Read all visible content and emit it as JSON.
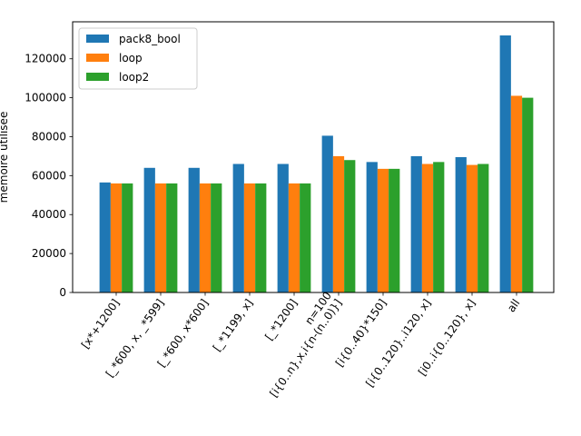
{
  "chart_data": {
    "type": "bar",
    "title": "",
    "xlabel": "",
    "ylabel": "memoire utilisee",
    "ylim": [
      0,
      139000
    ],
    "yticks": [
      0,
      20000,
      40000,
      60000,
      80000,
      100000,
      120000
    ],
    "ytick_labels": [
      "0",
      "20000",
      "40000",
      "60000",
      "80000",
      "100000",
      "120000"
    ],
    "grid": false,
    "legend_position": "top-left",
    "categories": [
      "[x*+1200]",
      "[_*600, x, _*599]",
      "[_*600, x*600]",
      "[_*1199, x]",
      "[_*1200]",
      "n=100\n[i{0..n},x,i{n-(n..0)}]",
      "[i{0..40}*150]",
      "[i{0..120}..i120, x]",
      "[i0..i{0..120}, x]",
      "all"
    ],
    "series": [
      {
        "name": "pack8_bool",
        "color": "#1f77b4",
        "values": [
          56500,
          64000,
          64000,
          66000,
          66000,
          80500,
          67000,
          70000,
          69500,
          132000
        ]
      },
      {
        "name": "loop",
        "color": "#ff7f0e",
        "values": [
          56000,
          56000,
          56000,
          56000,
          56000,
          70000,
          63500,
          66000,
          65500,
          101000
        ]
      },
      {
        "name": "loop2",
        "color": "#2ca02c",
        "values": [
          56000,
          56000,
          56000,
          56000,
          56000,
          68000,
          63500,
          67000,
          66000,
          100000
        ]
      }
    ]
  }
}
